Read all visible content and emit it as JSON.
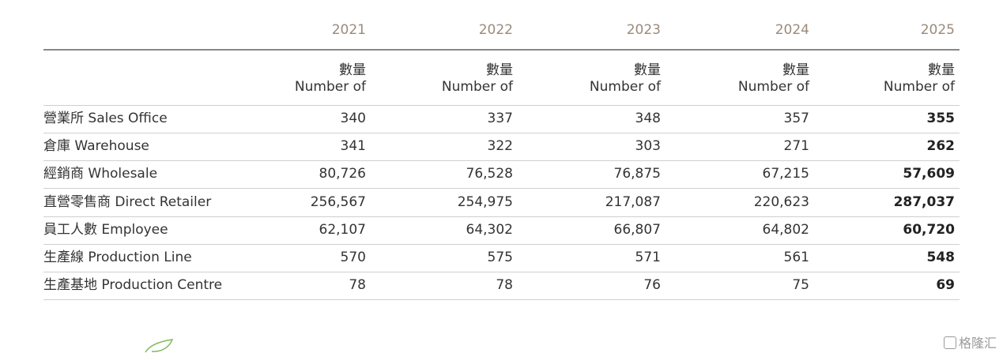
{
  "table": {
    "years": [
      "2021",
      "2022",
      "2023",
      "2024",
      "2025"
    ],
    "unit_zh": "數量",
    "unit_en": "Number of",
    "rows": [
      {
        "label": "營業所 Sales Office",
        "values": [
          "340",
          "337",
          "348",
          "357",
          "355"
        ]
      },
      {
        "label": "倉庫 Warehouse",
        "values": [
          "341",
          "322",
          "303",
          "271",
          "262"
        ]
      },
      {
        "label": "經銷商 Wholesale",
        "values": [
          "80,726",
          "76,528",
          "76,875",
          "67,215",
          "57,609"
        ]
      },
      {
        "label": "直營零售商 Direct Retailer",
        "values": [
          "256,567",
          "254,975",
          "217,087",
          "220,623",
          "287,037"
        ]
      },
      {
        "label": "員工人數 Employee",
        "values": [
          "62,107",
          "64,302",
          "66,807",
          "64,802",
          "60,720"
        ]
      },
      {
        "label": "生產線 Production Line",
        "values": [
          "570",
          "575",
          "571",
          "561",
          "548"
        ]
      },
      {
        "label": "生產基地 Production Centre",
        "values": [
          "78",
          "78",
          "76",
          "75",
          "69"
        ]
      }
    ]
  },
  "watermark": "格隆汇"
}
